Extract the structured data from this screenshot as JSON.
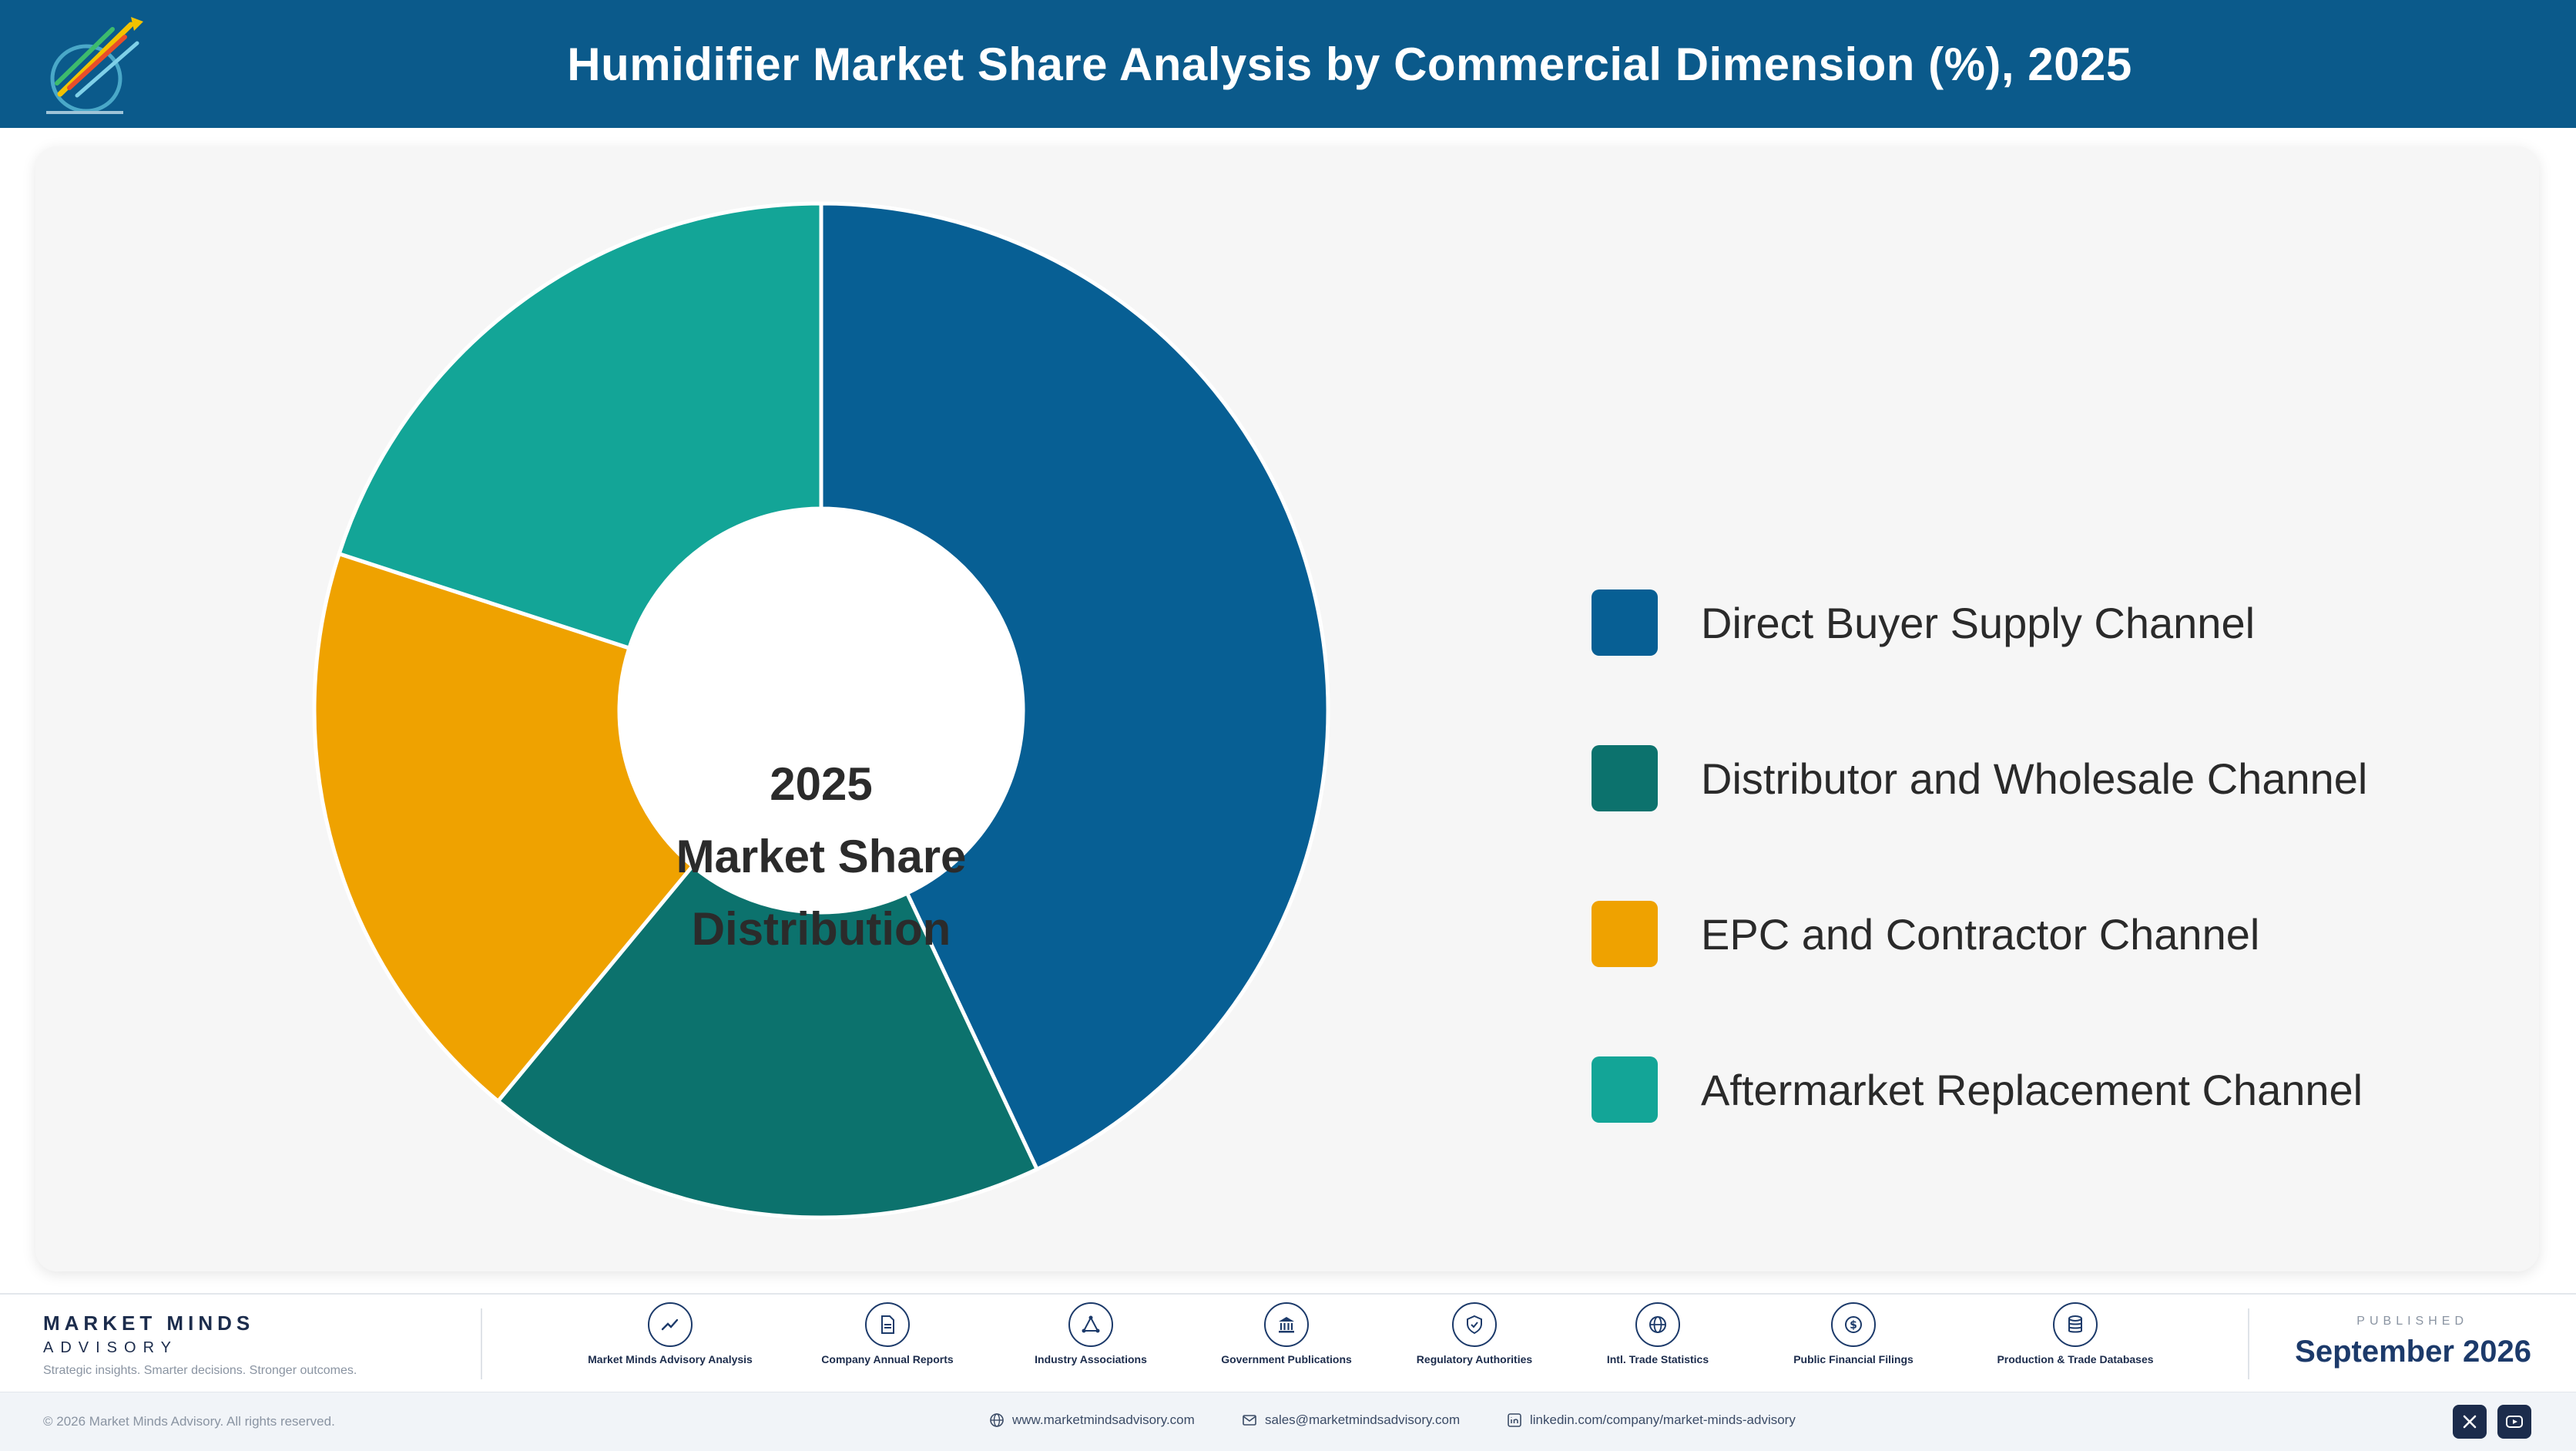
{
  "header": {
    "title": "Humidifier Market Share Analysis by Commercial Dimension (%), 2025",
    "logo_icon": "market-minds-logo-icon"
  },
  "chart_data": {
    "type": "pie",
    "donut": true,
    "title": "Humidifier Market Share Analysis by Commercial Dimension (%), 2025",
    "center_label": [
      "2025",
      "Market Share",
      "Distribution"
    ],
    "legend_position": "right",
    "categories": [
      "Direct Buyer Supply Channel",
      "Distributor and Wholesale Channel",
      "EPC and Contractor Channel",
      "Aftermarket Replacement Channel"
    ],
    "values": [
      43,
      18,
      19,
      20
    ],
    "colors": [
      "#075f94",
      "#0c726d",
      "#efa200",
      "#13a597"
    ]
  },
  "footer": {
    "brand_name": "MARKET MINDS",
    "brand_sub": "ADVISORY",
    "brand_tagline": "Strategic insights. Smarter decisions. Stronger outcomes.",
    "sources": [
      {
        "label": "Market Minds Advisory Analysis",
        "icon": "trend-chart-icon"
      },
      {
        "label": "Company Annual Reports",
        "icon": "document-icon"
      },
      {
        "label": "Industry Associations",
        "icon": "network-icon"
      },
      {
        "label": "Government Publications",
        "icon": "government-building-icon"
      },
      {
        "label": "Regulatory Authorities",
        "icon": "shield-check-icon"
      },
      {
        "label": "Intl. Trade Statistics",
        "icon": "globe-icon"
      },
      {
        "label": "Public Financial Filings",
        "icon": "currency-icon"
      },
      {
        "label": "Production & Trade Databases",
        "icon": "database-icon"
      }
    ],
    "published_caption": "PUBLISHED",
    "published_date": "September 2026",
    "copyright": "© 2026 Market Minds Advisory. All rights reserved.",
    "website": "www.marketmindsadvisory.com",
    "email": "sales@marketmindsadvisory.com",
    "linkedin": "linkedin.com/company/market-minds-advisory",
    "social": [
      {
        "name": "x",
        "icon": "x-icon"
      },
      {
        "name": "youtube",
        "icon": "youtube-icon"
      }
    ]
  }
}
